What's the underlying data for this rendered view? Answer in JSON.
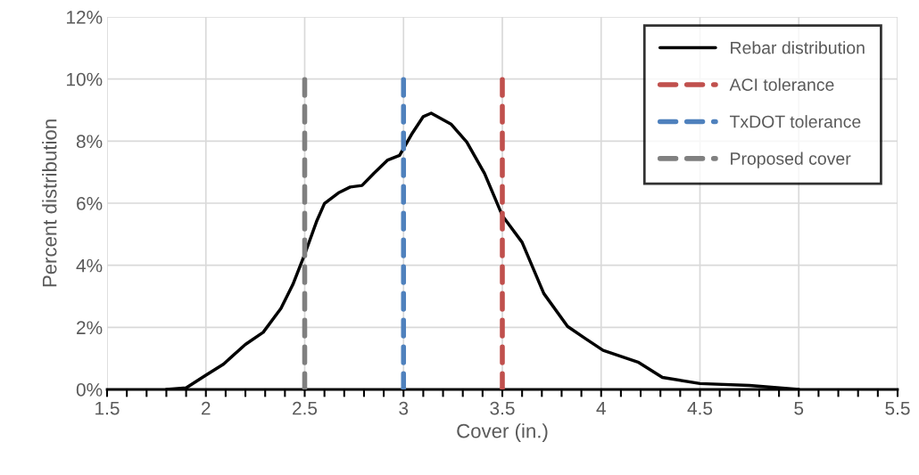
{
  "chart_data": {
    "type": "line",
    "xlabel": "Cover (in.)",
    "ylabel": "Percent distribution",
    "xlim": [
      1.5,
      5.5
    ],
    "xticks": [
      1.5,
      2,
      2.5,
      3,
      3.5,
      4,
      4.5,
      5,
      5.5
    ],
    "ylim": [
      0,
      12
    ],
    "yticks": [
      {
        "value": 0,
        "label": "0%"
      },
      {
        "value": 2,
        "label": "2%"
      },
      {
        "value": 4,
        "label": "4%"
      },
      {
        "value": 6,
        "label": "6%"
      },
      {
        "value": 8,
        "label": "8%"
      },
      {
        "value": 10,
        "label": "10%"
      },
      {
        "value": 12,
        "label": "12%"
      }
    ],
    "grid": true,
    "legend": "top right",
    "marker": "none",
    "series": [
      {
        "name": "Rebar distribution",
        "color": "#000000",
        "line_style": "solid",
        "x": [
          1.8,
          1.9,
          2.0,
          2.09,
          2.2,
          2.29,
          2.38,
          2.44,
          2.5,
          2.56,
          2.6,
          2.67,
          2.73,
          2.79,
          2.85,
          2.92,
          2.98,
          3.04,
          3.1,
          3.14,
          3.24,
          3.32,
          3.41,
          3.5,
          3.6,
          3.71,
          3.83,
          3.92,
          4.01,
          4.19,
          4.31,
          4.5,
          4.75,
          5.0
        ],
        "values": [
          0,
          0.05,
          0.46,
          0.82,
          1.45,
          1.84,
          2.61,
          3.38,
          4.35,
          5.41,
          5.99,
          6.33,
          6.52,
          6.57,
          6.96,
          7.39,
          7.54,
          8.21,
          8.79,
          8.9,
          8.55,
          7.97,
          6.96,
          5.6,
          4.74,
          3.09,
          2.03,
          1.64,
          1.26,
          0.87,
          0.39,
          0.19,
          0.13,
          0
        ]
      },
      {
        "name": "ACI tolerance",
        "color": "#c0504d",
        "line_style": "dashed",
        "x": [
          3.5,
          3.5
        ],
        "values": [
          0,
          10
        ]
      },
      {
        "name": "TxDOT tolerance",
        "color": "#4f81bd",
        "line_style": "dashed",
        "x": [
          3,
          3
        ],
        "values": [
          0,
          10
        ]
      },
      {
        "name": "Proposed cover",
        "color": "#808080",
        "line_style": "dashed",
        "x": [
          2.5,
          2.5
        ],
        "values": [
          0,
          10
        ]
      }
    ]
  }
}
